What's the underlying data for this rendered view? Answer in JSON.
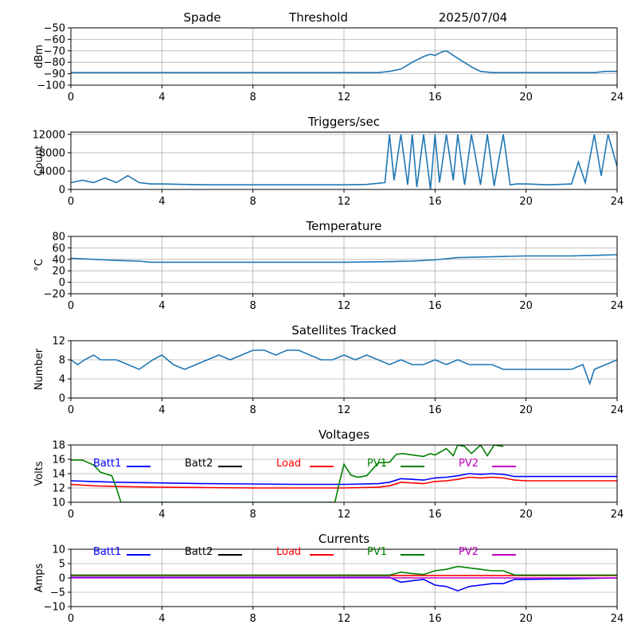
{
  "header": {
    "station": "Spade",
    "label": "Threshold",
    "date": "2025/07/04"
  },
  "colors": {
    "series_default": "#1f77b4",
    "grid": "#b0b0b0",
    "batt1": "#0000ff",
    "batt2": "#000000",
    "load": "#ff0000",
    "pv1": "#008000",
    "pv2": "#c000c0"
  },
  "chart_data": [
    {
      "id": "threshold",
      "type": "line",
      "title": "",
      "xlabel": "",
      "ylabel": "dBm",
      "xlim": [
        0,
        24
      ],
      "ylim": [
        -100,
        -50
      ],
      "xticks": [
        0,
        4,
        8,
        12,
        16,
        20,
        24
      ],
      "yticks": [
        -100,
        -90,
        -80,
        -70,
        -60,
        -50
      ],
      "grid": true,
      "series": [
        {
          "x": [
            0,
            2,
            4,
            6,
            8,
            10,
            12,
            13.5,
            14.0,
            14.5,
            15.0,
            15.5,
            15.8,
            16.0,
            16.3,
            16.5,
            16.8,
            17.2,
            17.6,
            18.0,
            18.5,
            19.0,
            20,
            21,
            22,
            23,
            23.5,
            24
          ],
          "y": [
            -89,
            -89,
            -89,
            -89,
            -89,
            -89,
            -89,
            -89,
            -88,
            -86,
            -80,
            -75,
            -73,
            -74,
            -71,
            -70,
            -74,
            -79,
            -84,
            -88,
            -89,
            -89,
            -89,
            -89,
            -89,
            -89,
            -88,
            -88
          ]
        }
      ]
    },
    {
      "id": "triggers",
      "type": "line",
      "title": "Triggers/sec",
      "xlabel": "",
      "ylabel": "Count",
      "xlim": [
        0,
        24
      ],
      "ylim": [
        0,
        12500
      ],
      "xticks": [
        0,
        4,
        8,
        12,
        16,
        20,
        24
      ],
      "yticks": [
        0,
        4000,
        8000,
        12000
      ],
      "grid": true,
      "series": [
        {
          "x": [
            0,
            0.5,
            1.0,
            1.5,
            2.0,
            2.5,
            3.0,
            3.5,
            4.0,
            5.0,
            6.0,
            7.0,
            8.0,
            9.0,
            10.0,
            11.0,
            12.0,
            13.0,
            13.8,
            14.0,
            14.2,
            14.5,
            14.8,
            15.0,
            15.2,
            15.5,
            15.8,
            16.0,
            16.2,
            16.5,
            16.8,
            17.0,
            17.3,
            17.6,
            18.0,
            18.3,
            18.6,
            19.0,
            19.3,
            19.6,
            20.0,
            21.0,
            22.0,
            22.3,
            22.6,
            23.0,
            23.3,
            23.6,
            24.0
          ],
          "y": [
            1500,
            2000,
            1500,
            2500,
            1500,
            3000,
            1500,
            1200,
            1200,
            1100,
            1000,
            1000,
            1000,
            1000,
            1000,
            1000,
            1000,
            1100,
            1500,
            12000,
            2000,
            12000,
            1000,
            12000,
            500,
            12000,
            0,
            12000,
            1500,
            12000,
            2000,
            12000,
            1000,
            12000,
            1000,
            12000,
            800,
            12000,
            1000,
            1200,
            1200,
            1000,
            1200,
            6000,
            1500,
            12000,
            3000,
            12000,
            5000
          ]
        }
      ]
    },
    {
      "id": "temperature",
      "type": "line",
      "title": "Temperature",
      "xlabel": "",
      "ylabel": "°C",
      "xlim": [
        0,
        24
      ],
      "ylim": [
        -20,
        80
      ],
      "xticks": [
        0,
        4,
        8,
        12,
        16,
        20,
        24
      ],
      "yticks": [
        -20,
        0,
        20,
        40,
        60,
        80
      ],
      "grid": true,
      "series": [
        {
          "x": [
            0,
            1,
            2,
            3,
            3.5,
            6,
            10,
            12,
            14,
            15,
            16,
            17,
            18,
            19,
            20,
            22,
            23,
            24
          ],
          "y": [
            42,
            40,
            38,
            37,
            35,
            35,
            35,
            35,
            36,
            37,
            39,
            43,
            44,
            45,
            46,
            46,
            47,
            48
          ]
        }
      ]
    },
    {
      "id": "satellites",
      "type": "line",
      "title": "Satellites Tracked",
      "xlabel": "",
      "ylabel": "Number",
      "xlim": [
        0,
        24
      ],
      "ylim": [
        0,
        12
      ],
      "xticks": [
        0,
        4,
        8,
        12,
        16,
        20,
        24
      ],
      "yticks": [
        0,
        4,
        8,
        12
      ],
      "grid": true,
      "series": [
        {
          "x": [
            0,
            0.3,
            0.6,
            1.0,
            1.3,
            1.6,
            2.0,
            2.5,
            3.0,
            3.3,
            3.6,
            4.0,
            4.5,
            5.0,
            5.5,
            6.0,
            6.5,
            7.0,
            7.5,
            8.0,
            8.5,
            9.0,
            9.5,
            10.0,
            10.5,
            11.0,
            11.5,
            12.0,
            12.5,
            13.0,
            13.5,
            14.0,
            14.5,
            15.0,
            15.5,
            16.0,
            16.5,
            17.0,
            17.5,
            18.0,
            18.5,
            19.0,
            19.5,
            20.0,
            20.5,
            21.0,
            21.5,
            22.0,
            22.5,
            22.8,
            23.0,
            23.5,
            24.0
          ],
          "y": [
            8,
            7,
            8,
            9,
            8,
            8,
            8,
            7,
            6,
            7,
            8,
            9,
            7,
            6,
            7,
            8,
            9,
            8,
            9,
            10,
            10,
            9,
            10,
            10,
            9,
            8,
            8,
            9,
            8,
            9,
            8,
            7,
            8,
            7,
            7,
            8,
            7,
            8,
            7,
            7,
            7,
            6,
            6,
            6,
            6,
            6,
            6,
            6,
            7,
            3,
            6,
            7,
            8
          ]
        }
      ]
    },
    {
      "id": "voltages",
      "type": "line",
      "title": "Voltages",
      "xlabel": "",
      "ylabel": "Volts",
      "xlim": [
        0,
        24
      ],
      "ylim": [
        10,
        18
      ],
      "xticks": [
        0,
        4,
        8,
        12,
        16,
        20,
        24
      ],
      "yticks": [
        10,
        12,
        14,
        16,
        18
      ],
      "grid": true,
      "legend": [
        "Batt1",
        "Batt2",
        "Load",
        "PV1",
        "PV2"
      ],
      "series": [
        {
          "name": "Batt1",
          "color_key": "batt1",
          "x": [
            0,
            1,
            2,
            4,
            6,
            8,
            10,
            12,
            13.5,
            14,
            14.5,
            15,
            15.5,
            16,
            16.5,
            17,
            17.5,
            18,
            18.5,
            19,
            19.5,
            20,
            22,
            24
          ],
          "y": [
            13.0,
            12.9,
            12.8,
            12.7,
            12.6,
            12.55,
            12.5,
            12.5,
            12.6,
            12.8,
            13.3,
            13.2,
            13.1,
            13.4,
            13.5,
            13.7,
            14.0,
            13.9,
            14.0,
            13.9,
            13.6,
            13.6,
            13.6,
            13.6
          ]
        },
        {
          "name": "Load",
          "color_key": "load",
          "x": [
            0,
            1,
            2,
            4,
            6,
            8,
            10,
            12,
            13.5,
            14,
            14.5,
            15,
            15.5,
            16,
            16.5,
            17,
            17.5,
            18,
            18.5,
            19,
            19.5,
            20,
            22,
            24
          ],
          "y": [
            12.5,
            12.3,
            12.2,
            12.1,
            12.05,
            12.0,
            12.0,
            12.0,
            12.1,
            12.3,
            12.8,
            12.7,
            12.6,
            12.9,
            13.0,
            13.2,
            13.5,
            13.4,
            13.5,
            13.4,
            13.1,
            13.0,
            13.0,
            13.0
          ]
        },
        {
          "name": "PV1",
          "color_key": "pv1",
          "x": [
            0,
            0.5,
            1.0,
            1.3,
            1.8,
            2.0,
            2.2,
            11.6,
            11.8,
            12.0,
            12.3,
            12.6,
            13.0,
            13.5,
            14.0,
            14.3,
            14.6,
            15.0,
            15.5,
            15.8,
            16.0,
            16.5,
            16.8,
            17.0,
            17.3,
            17.6,
            18.0,
            18.3,
            18.6,
            19.0
          ],
          "y": [
            15.9,
            15.9,
            15.2,
            14.2,
            13.7,
            12.0,
            10.0,
            10.0,
            12.8,
            15.3,
            13.8,
            13.5,
            13.7,
            15.5,
            15.6,
            16.7,
            16.8,
            16.6,
            16.4,
            16.8,
            16.6,
            17.5,
            16.5,
            18.0,
            17.8,
            16.8,
            18.0,
            16.5,
            18.0,
            17.8
          ]
        }
      ]
    },
    {
      "id": "currents",
      "type": "line",
      "title": "Currents",
      "xlabel": "",
      "ylabel": "Amps",
      "xlim": [
        0,
        24
      ],
      "ylim": [
        -10,
        10
      ],
      "xticks": [
        0,
        4,
        8,
        12,
        16,
        20,
        24
      ],
      "yticks": [
        -10,
        -5,
        0,
        5,
        10
      ],
      "grid": true,
      "legend": [
        "Batt1",
        "Batt2",
        "Load",
        "PV1",
        "PV2"
      ],
      "series": [
        {
          "name": "Batt1",
          "color_key": "batt1",
          "x": [
            0,
            4,
            8,
            12,
            14,
            14.5,
            15,
            15.5,
            16,
            16.5,
            17,
            17.5,
            18,
            18.5,
            19,
            19.5,
            20,
            22,
            24
          ],
          "y": [
            0.2,
            0.2,
            0.2,
            0.2,
            0.2,
            -1.5,
            -1.0,
            -0.5,
            -2.5,
            -3.0,
            -4.5,
            -3.0,
            -2.5,
            -2.0,
            -2.0,
            -0.5,
            -0.5,
            -0.3,
            0.0
          ]
        },
        {
          "name": "Load",
          "color_key": "load",
          "x": [
            0,
            4,
            8,
            12,
            16,
            20,
            24
          ],
          "y": [
            0.8,
            0.8,
            0.8,
            0.8,
            0.8,
            0.8,
            0.8
          ]
        },
        {
          "name": "PV1",
          "color_key": "pv1",
          "x": [
            0,
            4,
            8,
            12,
            14,
            14.5,
            15,
            15.5,
            16,
            16.5,
            17,
            17.5,
            18,
            18.5,
            19,
            19.5,
            20,
            22,
            24
          ],
          "y": [
            1.0,
            1.0,
            1.0,
            1.0,
            1.0,
            2.0,
            1.5,
            1.2,
            2.5,
            3.0,
            4.0,
            3.5,
            3.0,
            2.5,
            2.5,
            1.0,
            1.0,
            1.0,
            1.0
          ]
        },
        {
          "name": "PV2",
          "color_key": "pv2",
          "x": [
            0,
            4,
            8,
            12,
            16,
            20,
            24
          ],
          "y": [
            0.0,
            0.0,
            0.0,
            0.0,
            0.0,
            0.0,
            0.0
          ]
        }
      ]
    }
  ]
}
